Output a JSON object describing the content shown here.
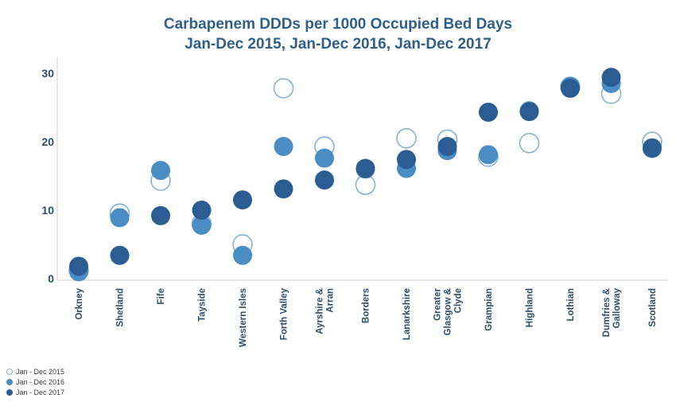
{
  "chart_data": {
    "type": "scatter",
    "title": [
      "Carbapenem DDDs per 1000 Occupied Bed Days",
      "Jan-Dec 2015, Jan-Dec 2016, Jan-Dec 2017"
    ],
    "xlabel": "",
    "ylabel": "",
    "ylim": [
      0,
      33
    ],
    "yticks": [
      0,
      10,
      20,
      30
    ],
    "grid": false,
    "legend_position": "bottom-left",
    "categories": [
      [
        "Orkney"
      ],
      [
        "Shetland"
      ],
      [
        "Fife"
      ],
      [
        "Tayside"
      ],
      [
        "Western Isles"
      ],
      [
        "Forth Valley"
      ],
      [
        "Ayrshire &",
        "Arran"
      ],
      [
        "Borders"
      ],
      [
        "Lanarkshire"
      ],
      [
        "Greater",
        "Glasgow &",
        "Clyde"
      ],
      [
        "Grampian"
      ],
      [
        "Highland"
      ],
      [
        "Lothian"
      ],
      [
        "Dumfries &",
        "Galloway"
      ],
      [
        "Scotland"
      ]
    ],
    "series": [
      {
        "name": "Jan - Dec 2015",
        "style": "hollow",
        "color": "#7FAFD6",
        "values": [
          1.2,
          9.5,
          14.3,
          8.0,
          5.0,
          27.8,
          19.3,
          13.7,
          20.5,
          20.3,
          17.8,
          19.8,
          28.0,
          27.0,
          20.0
        ]
      },
      {
        "name": "Jan - Dec 2016",
        "style": "filled",
        "color": "#4A8CC4",
        "values": [
          1.0,
          8.9,
          15.8,
          7.8,
          3.4,
          19.3,
          17.6,
          16.0,
          16.1,
          18.7,
          18.1,
          24.5,
          28.1,
          28.5,
          19.0
        ]
      },
      {
        "name": "Jan - Dec 2017",
        "style": "filled",
        "color": "#2C5D92",
        "values": [
          1.8,
          3.4,
          9.2,
          10.0,
          11.5,
          13.1,
          14.4,
          16.1,
          17.4,
          19.3,
          24.3,
          24.4,
          27.8,
          29.4,
          19.1
        ]
      }
    ]
  }
}
